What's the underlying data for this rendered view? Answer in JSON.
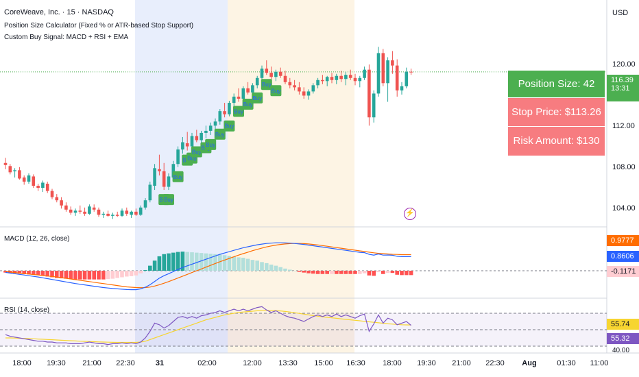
{
  "header": {
    "symbol_line": "CoreWeave, Inc. · 15 · NASDAQ",
    "indicator_1": "Position Size Calculator (Fixed % or ATR-based Stop Support)",
    "indicator_2": "Custom Buy Signal: MACD + RSI + EMA",
    "currency": "USD"
  },
  "price_axis": {
    "ticks": [
      "120.00",
      "116.39",
      "13:31",
      "112.00",
      "108.00",
      "104.00"
    ]
  },
  "info_table": {
    "position_size": "Position Size: 42 shares",
    "stop_price": "Stop Price: $113.26",
    "risk_amount": "Risk Amount: $130",
    "colors": {
      "position": "#4caf50",
      "stop": "#f77c80",
      "risk": "#f77c80"
    }
  },
  "macd": {
    "title": "MACD (12, 26, close)",
    "values": [
      "0.9777",
      "0.8606",
      "-0.1171"
    ],
    "colors": {
      "signal": "#ff6d00",
      "macd": "#2962ff",
      "hist_neg": "#ffcdd2"
    }
  },
  "rsi": {
    "title": "RSI (14, close)",
    "values": [
      "55.74",
      "55.32",
      "40.00"
    ],
    "colors": {
      "ma": "#f7d530",
      "rsi": "#7e57c2"
    }
  },
  "time_axis": [
    "18:00",
    "19:30",
    "21:00",
    "22:30",
    "31",
    "02:00",
    "12:00",
    "13:30",
    "15:00",
    "16:30",
    "18:00",
    "19:30",
    "21:00",
    "22:30",
    "Aug",
    "01:30",
    "11:00"
  ],
  "signal_label": "Buy",
  "chart_data": {
    "type": "candlestick",
    "price_range": [
      101.5,
      122
    ],
    "last_price": 116.39,
    "countdown": "13:31",
    "series": [
      {
        "name": "price",
        "values": [
          [
            107.6,
            108.1,
            107.0,
            107.4
          ],
          [
            107.3,
            107.5,
            106.5,
            106.7
          ],
          [
            106.8,
            107.1,
            106.2,
            106.9
          ],
          [
            106.9,
            107.2,
            106.0,
            106.1
          ],
          [
            106.2,
            106.4,
            105.5,
            105.8
          ],
          [
            105.8,
            106.6,
            105.6,
            106.4
          ],
          [
            106.3,
            106.5,
            105.2,
            105.4
          ],
          [
            105.4,
            105.6,
            104.9,
            105.2
          ],
          [
            105.2,
            105.9,
            104.8,
            105.7
          ],
          [
            105.6,
            105.8,
            104.7,
            104.9
          ],
          [
            104.9,
            105.1,
            104.1,
            104.3
          ],
          [
            104.3,
            104.6,
            103.8,
            104.0
          ],
          [
            104.0,
            104.3,
            103.2,
            103.5
          ],
          [
            103.5,
            103.8,
            102.9,
            103.1
          ],
          [
            103.1,
            103.4,
            102.6,
            102.8
          ],
          [
            102.8,
            103.2,
            102.5,
            103.0
          ],
          [
            103.0,
            103.5,
            102.7,
            102.9
          ],
          [
            102.9,
            103.3,
            102.5,
            102.7
          ],
          [
            102.7,
            103.6,
            102.6,
            103.4
          ],
          [
            103.3,
            103.6,
            102.9,
            103.1
          ],
          [
            103.1,
            103.3,
            102.4,
            102.6
          ],
          [
            102.6,
            102.9,
            102.3,
            102.7
          ],
          [
            102.7,
            103.0,
            102.4,
            102.5
          ],
          [
            102.5,
            102.8,
            102.2,
            102.6
          ],
          [
            102.6,
            102.9,
            102.4,
            102.5
          ],
          [
            102.5,
            103.2,
            102.4,
            103.0
          ],
          [
            103.0,
            103.3,
            102.5,
            102.7
          ],
          [
            102.6,
            103.0,
            102.3,
            102.9
          ],
          [
            102.9,
            103.2,
            102.5,
            102.6
          ],
          [
            102.6,
            103.5,
            102.5,
            103.3
          ],
          [
            103.3,
            104.2,
            103.1,
            104.0
          ],
          [
            104.0,
            105.8,
            103.8,
            105.5
          ],
          [
            105.4,
            107.5,
            105.0,
            107.1
          ],
          [
            107.0,
            108.4,
            106.4,
            106.8
          ],
          [
            106.8,
            107.6,
            105.0,
            105.3
          ],
          [
            105.3,
            106.6,
            105.0,
            106.3
          ],
          [
            106.2,
            107.8,
            106.0,
            107.5
          ],
          [
            107.5,
            109.2,
            107.2,
            108.9
          ],
          [
            108.9,
            110.1,
            108.5,
            109.6
          ],
          [
            109.5,
            110.6,
            108.8,
            109.2
          ],
          [
            109.2,
            110.5,
            109.0,
            110.2
          ],
          [
            110.2,
            110.8,
            109.6,
            109.8
          ],
          [
            109.8,
            110.7,
            109.4,
            110.5
          ],
          [
            110.5,
            111.2,
            110.0,
            110.7
          ],
          [
            110.7,
            111.5,
            110.3,
            111.2
          ],
          [
            111.2,
            111.9,
            110.8,
            111.6
          ],
          [
            111.6,
            112.8,
            111.3,
            112.6
          ],
          [
            112.6,
            113.4,
            112.0,
            112.3
          ],
          [
            112.3,
            113.6,
            112.1,
            113.4
          ],
          [
            113.4,
            114.3,
            113.0,
            114.0
          ],
          [
            114.0,
            114.8,
            113.5,
            113.8
          ],
          [
            113.8,
            115.0,
            113.6,
            114.8
          ],
          [
            114.8,
            115.4,
            114.2,
            114.4
          ],
          [
            114.4,
            115.3,
            114.1,
            115.1
          ],
          [
            115.1,
            116.0,
            114.8,
            115.8
          ],
          [
            115.8,
            117.0,
            115.5,
            116.7
          ],
          [
            116.7,
            117.5,
            116.1,
            116.3
          ],
          [
            116.3,
            116.9,
            115.6,
            115.9
          ],
          [
            115.9,
            116.6,
            115.5,
            116.4
          ],
          [
            116.4,
            116.8,
            115.8,
            116.0
          ],
          [
            116.0,
            116.5,
            115.2,
            115.4
          ],
          [
            115.4,
            115.8,
            114.8,
            115.1
          ],
          [
            115.1,
            115.6,
            114.6,
            114.9
          ],
          [
            114.9,
            115.4,
            114.2,
            114.5
          ],
          [
            114.5,
            114.9,
            113.8,
            114.1
          ],
          [
            114.1,
            114.7,
            113.7,
            114.5
          ],
          [
            114.5,
            115.3,
            114.3,
            115.1
          ],
          [
            115.1,
            115.8,
            114.8,
            115.6
          ],
          [
            115.6,
            116.1,
            115.2,
            115.5
          ],
          [
            115.5,
            116.0,
            115.0,
            115.9
          ],
          [
            115.9,
            116.3,
            115.3,
            115.6
          ],
          [
            115.6,
            116.2,
            115.2,
            116.0
          ],
          [
            116.0,
            116.5,
            115.4,
            115.7
          ],
          [
            115.7,
            116.4,
            115.1,
            116.1
          ],
          [
            116.1,
            116.6,
            115.6,
            115.8
          ],
          [
            115.8,
            116.2,
            115.1,
            115.5
          ],
          [
            115.5,
            116.0,
            114.9,
            115.8
          ],
          [
            115.8,
            116.9,
            115.6,
            116.6
          ],
          [
            116.6,
            117.1,
            111.2,
            112.0
          ],
          [
            112.0,
            114.6,
            111.5,
            114.3
          ],
          [
            114.3,
            118.8,
            114.0,
            118.2
          ],
          [
            118.2,
            118.6,
            115.0,
            115.3
          ],
          [
            115.3,
            117.8,
            113.5,
            117.5
          ],
          [
            117.5,
            118.4,
            116.2,
            117.0
          ],
          [
            117.0,
            117.6,
            114.0,
            114.6
          ],
          [
            114.6,
            115.4,
            114.2,
            115.0
          ],
          [
            115.0,
            116.8,
            114.8,
            116.4
          ],
          [
            116.4,
            116.7,
            116.1,
            116.39
          ]
        ]
      },
      {
        "name": "MACD",
        "values": [
          -0.1,
          -0.14,
          -0.18,
          -0.22,
          -0.26,
          -0.3,
          -0.34,
          -0.38,
          -0.43,
          -0.48,
          -0.53,
          -0.58,
          -0.63,
          -0.68,
          -0.73,
          -0.78,
          -0.82,
          -0.86,
          -0.9,
          -0.94,
          -0.98,
          -1.02,
          -1.05,
          -1.08,
          -1.1,
          -1.12,
          -1.14,
          -1.15,
          -1.15,
          -1.1,
          -1.0,
          -0.85,
          -0.65,
          -0.45,
          -0.3,
          -0.18,
          -0.05,
          0.08,
          0.2,
          0.3,
          0.4,
          0.5,
          0.6,
          0.7,
          0.8,
          0.9,
          1.0,
          1.08,
          1.16,
          1.24,
          1.32,
          1.4,
          1.46,
          1.52,
          1.58,
          1.62,
          1.66,
          1.68,
          1.7,
          1.7,
          1.69,
          1.68,
          1.66,
          1.63,
          1.6,
          1.56,
          1.52,
          1.48,
          1.44,
          1.4,
          1.36,
          1.32,
          1.28,
          1.24,
          1.2,
          1.16,
          1.12,
          1.1,
          1.0,
          0.95,
          1.02,
          0.95,
          0.96,
          0.94,
          0.88,
          0.86,
          0.86,
          0.86
        ]
      },
      {
        "name": "Signal",
        "values": [
          -0.05,
          -0.08,
          -0.11,
          -0.14,
          -0.17,
          -0.2,
          -0.23,
          -0.26,
          -0.29,
          -0.32,
          -0.35,
          -0.38,
          -0.42,
          -0.46,
          -0.5,
          -0.54,
          -0.58,
          -0.62,
          -0.66,
          -0.7,
          -0.74,
          -0.78,
          -0.82,
          -0.86,
          -0.9,
          -0.94,
          -0.98,
          -1.0,
          -1.02,
          -1.03,
          -1.02,
          -0.99,
          -0.93,
          -0.85,
          -0.76,
          -0.66,
          -0.55,
          -0.44,
          -0.33,
          -0.22,
          -0.11,
          0.0,
          0.11,
          0.22,
          0.33,
          0.44,
          0.55,
          0.65,
          0.75,
          0.85,
          0.95,
          1.04,
          1.13,
          1.22,
          1.3,
          1.38,
          1.45,
          1.51,
          1.56,
          1.6,
          1.63,
          1.65,
          1.66,
          1.66,
          1.65,
          1.63,
          1.6,
          1.57,
          1.53,
          1.49,
          1.45,
          1.41,
          1.37,
          1.33,
          1.29,
          1.25,
          1.21,
          1.17,
          1.13,
          1.09,
          1.06,
          1.04,
          1.02,
          1.0,
          0.99,
          0.98,
          0.98,
          0.98
        ]
      },
      {
        "name": "RSI",
        "values": [
          44,
          42,
          41,
          40,
          39,
          38,
          37,
          36,
          36,
          35,
          35,
          34,
          34,
          34,
          33,
          33,
          33,
          34,
          35,
          34,
          33,
          33,
          32,
          33,
          33,
          34,
          33,
          34,
          33,
          35,
          40,
          48,
          58,
          56,
          52,
          55,
          60,
          65,
          66,
          64,
          66,
          64,
          67,
          68,
          70,
          71,
          73,
          71,
          73,
          75,
          73,
          75,
          73,
          75,
          77,
          78,
          74,
          71,
          73,
          70,
          67,
          65,
          64,
          62,
          60,
          63,
          66,
          68,
          66,
          68,
          66,
          69,
          66,
          68,
          66,
          64,
          67,
          69,
          48,
          57,
          68,
          58,
          64,
          62,
          56,
          58,
          60,
          55.32
        ]
      },
      {
        "name": "RSI MA",
        "values": [
          40,
          40,
          39.8,
          39.6,
          39.4,
          39.2,
          39,
          38.7,
          38.4,
          38.1,
          37.8,
          37.5,
          37.2,
          36.9,
          36.6,
          36.3,
          36,
          35.8,
          35.6,
          35.4,
          35.2,
          35,
          34.8,
          34.7,
          34.6,
          34.6,
          34.6,
          34.6,
          34.6,
          35,
          36,
          38,
          40,
          42,
          44,
          46,
          48,
          50,
          52,
          54,
          56,
          58,
          60,
          62,
          63.5,
          65,
          66.5,
          68,
          69,
          70,
          71,
          71.5,
          72,
          72.5,
          73,
          73.5,
          73.5,
          73.5,
          73.2,
          72.8,
          72.2,
          71.5,
          70.7,
          69.8,
          68.9,
          68,
          67.2,
          66.4,
          65.7,
          65,
          64.4,
          63.8,
          63.2,
          62.6,
          62,
          61.4,
          60.8,
          60.2,
          59.6,
          59,
          58.4,
          57.8,
          57.2,
          56.8,
          56.4,
          56,
          55.8,
          55.74
        ]
      }
    ]
  }
}
